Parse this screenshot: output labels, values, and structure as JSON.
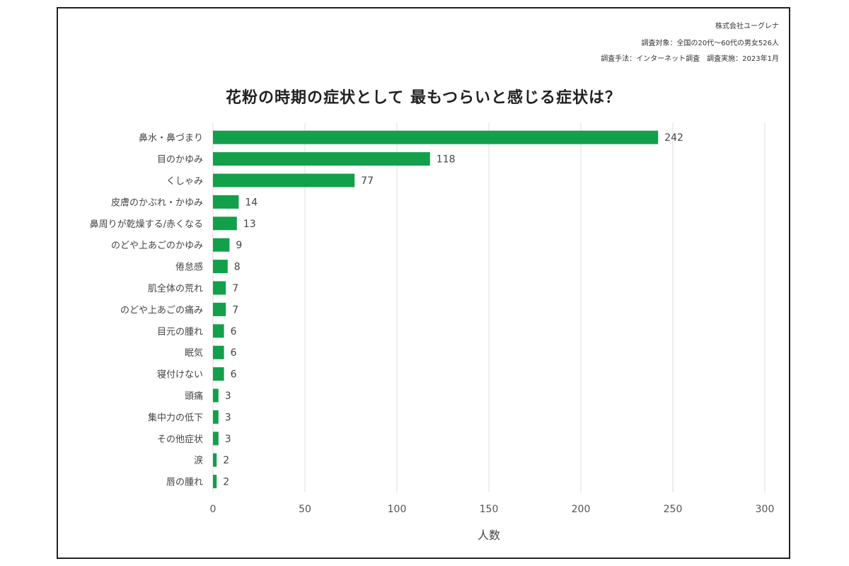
{
  "meta": {
    "company": "株式会社ユーグレナ",
    "target": "調査対象：全国の20代〜60代の男女526人",
    "method": "調査手法：インターネット調査　調査実施：2023年1月"
  },
  "chart_data": {
    "type": "bar",
    "orientation": "horizontal",
    "title": "花粉の時期の症状として 最もつらいと感じる症状は？",
    "xlabel": "人数",
    "ylabel": "",
    "xlim": [
      0,
      300
    ],
    "ticks": [
      0,
      50,
      100,
      150,
      200,
      250,
      300
    ],
    "grid": true,
    "bar_color": "#12a04a",
    "categories": [
      "鼻水・鼻づまり",
      "目のかゆみ",
      "くしゃみ",
      "皮膚のかぶれ・かゆみ",
      "鼻周りが乾燥する/赤くなる",
      "のどや上あごのかゆみ",
      "倦怠感",
      "肌全体の荒れ",
      "のどや上あごの痛み",
      "目元の腫れ",
      "眠気",
      "寝付けない",
      "頭痛",
      "集中力の低下",
      "その他症状",
      "涙",
      "唇の腫れ"
    ],
    "values": [
      242,
      118,
      77,
      14,
      13,
      9,
      8,
      7,
      7,
      6,
      6,
      6,
      3,
      3,
      3,
      2,
      2
    ]
  }
}
